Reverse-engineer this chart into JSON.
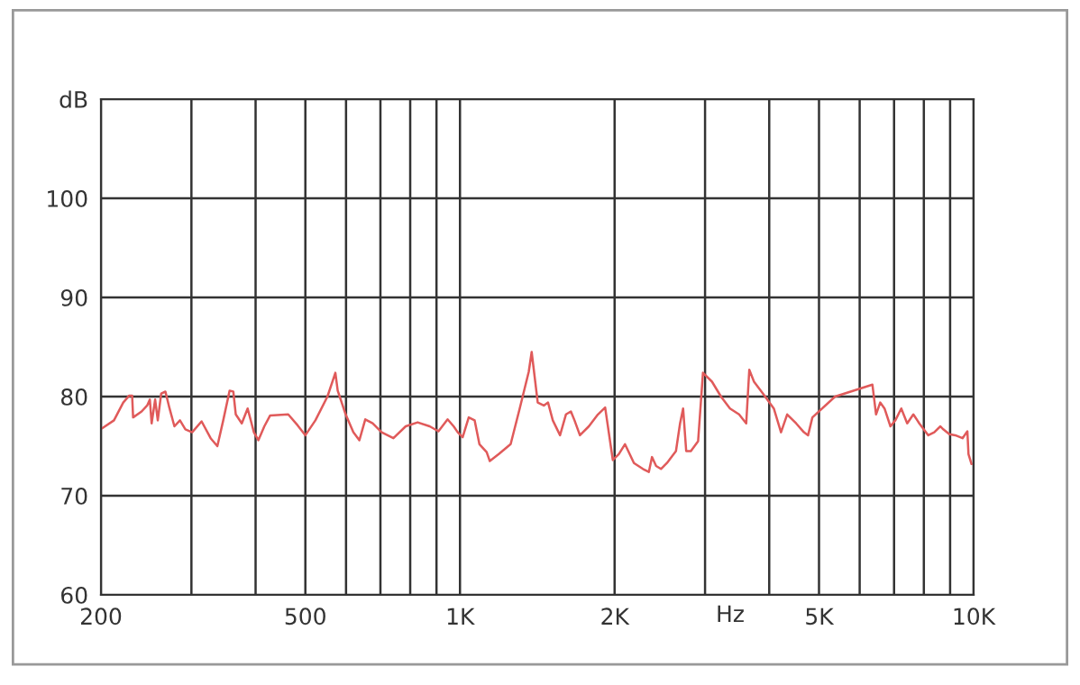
{
  "chart_data": {
    "type": "line",
    "xlabel": "Hz",
    "log": "x",
    "grid": true,
    "xlim": [
      200,
      10000
    ],
    "ylim": [
      60,
      110
    ],
    "xticks": [
      200,
      {
        "value": 300,
        "label": null
      },
      {
        "value": 400,
        "label": null
      },
      500,
      {
        "value": 600,
        "label": null
      },
      {
        "value": 700,
        "label": null
      },
      {
        "value": 800,
        "label": null
      },
      {
        "value": 900,
        "label": null
      },
      {
        "value": 1000,
        "label": "1K"
      },
      {
        "value": 2000,
        "label": "2K"
      },
      {
        "value": 3000,
        "label": null
      },
      {
        "value": 4000,
        "label": null
      },
      {
        "value": 5000,
        "label": "5K"
      },
      {
        "value": 6000,
        "label": null
      },
      {
        "value": 7000,
        "label": null
      },
      {
        "value": 8000,
        "label": null
      },
      {
        "value": 9000,
        "label": null
      },
      {
        "value": 10000,
        "label": "10K"
      }
    ],
    "yticks": [
      60,
      70,
      80,
      90,
      100,
      {
        "value": 110,
        "label": "dB"
      }
    ],
    "series": [
      {
        "color": "#e05a5a",
        "x": [
          201,
          212,
          221,
          227,
          230,
          231,
          240,
          246,
          249,
          251,
          255,
          258,
          262,
          267,
          272,
          278,
          285,
          292,
          301,
          314,
          327,
          337,
          346,
          356,
          362,
          366,
          376,
          386,
          397,
          405,
          416,
          427,
          463,
          483,
          500,
          523,
          552,
          572,
          578,
          599,
          620,
          637,
          654,
          676,
          704,
          742,
          784,
          827,
          873,
          908,
          946,
          972,
          990,
          1012,
          1040,
          1068,
          1091,
          1127,
          1143,
          1190,
          1255,
          1307,
          1361,
          1379,
          1417,
          1456,
          1484,
          1516,
          1566,
          1608,
          1644,
          1671,
          1712,
          1782,
          1856,
          1917,
          1984,
          2038,
          2095,
          2181,
          2271,
          2332,
          2365,
          2409,
          2462,
          2529,
          2633,
          2682,
          2719,
          2757,
          2815,
          2908,
          2972,
          3095,
          3222,
          3355,
          3494,
          3608,
          3658,
          3736,
          3890,
          4083,
          4217,
          4335,
          4513,
          4673,
          4761,
          4854,
          5374,
          6353,
          6457,
          6578,
          6707,
          6887,
          7040,
          7230,
          7425,
          7632,
          7838,
          8161,
          8382,
          8616,
          8727,
          8971,
          9212,
          9514,
          9724,
          9772,
          9906
        ],
        "values": [
          76.8,
          77.6,
          79.4,
          80.1,
          80.1,
          77.9,
          78.5,
          79.1,
          79.7,
          77.3,
          79.7,
          77.6,
          80.3,
          80.5,
          78.8,
          77.0,
          77.6,
          76.7,
          76.4,
          77.5,
          75.8,
          75.0,
          77.6,
          80.6,
          80.5,
          78.2,
          77.3,
          78.8,
          76.4,
          75.6,
          77.0,
          78.1,
          78.2,
          77.1,
          76.1,
          77.6,
          80.0,
          82.4,
          80.6,
          78.2,
          76.4,
          75.6,
          77.7,
          77.3,
          76.4,
          75.8,
          77.0,
          77.4,
          77.0,
          76.5,
          77.7,
          77.0,
          76.4,
          75.9,
          77.9,
          77.6,
          75.2,
          74.4,
          73.5,
          74.2,
          75.2,
          78.8,
          82.5,
          84.5,
          79.4,
          79.1,
          79.4,
          77.6,
          76.1,
          78.2,
          78.5,
          77.6,
          76.1,
          77.0,
          78.2,
          78.9,
          73.6,
          74.2,
          75.2,
          73.3,
          72.7,
          72.4,
          73.9,
          73.0,
          72.7,
          73.3,
          74.5,
          77.3,
          78.8,
          74.5,
          74.5,
          75.5,
          82.4,
          81.5,
          80.0,
          78.8,
          78.2,
          77.3,
          82.7,
          81.5,
          80.3,
          78.8,
          76.4,
          78.2,
          77.3,
          76.4,
          76.1,
          77.9,
          80.0,
          81.2,
          78.2,
          79.4,
          78.8,
          77.0,
          77.6,
          78.8,
          77.3,
          78.2,
          77.3,
          76.1,
          76.4,
          77.0,
          76.7,
          76.2,
          76.1,
          75.8,
          76.5,
          74.2,
          73.2
        ]
      }
    ]
  }
}
